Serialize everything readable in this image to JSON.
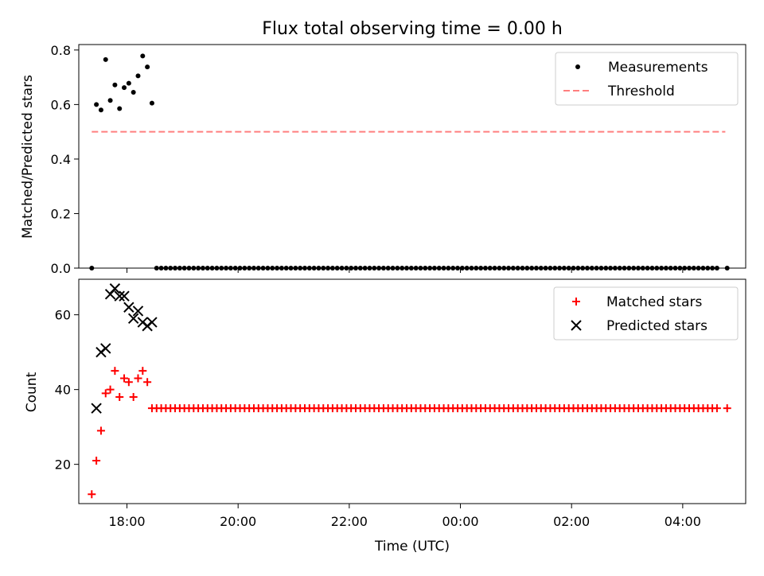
{
  "figure": {
    "title": "Flux total observing time = 0.00 h",
    "xlabel": "Time (UTC)",
    "colors": {
      "measurements": "#000000",
      "threshold": "#ff7f7f",
      "matched": "#ff0000",
      "predicted": "#000000"
    }
  },
  "chart_data": [
    {
      "type": "scatter",
      "panel": "top",
      "ylabel": "Matched/Predicted stars",
      "xlim": [
        "17:08",
        "05:08"
      ],
      "ylim": [
        0,
        0.82
      ],
      "yticks": [
        "0.0",
        "0.2",
        "0.4",
        "0.6",
        "0.8"
      ],
      "legend": {
        "placement": "upper-right",
        "entries": [
          "Measurements",
          "Threshold"
        ]
      },
      "threshold": {
        "name": "Threshold",
        "y": 0.5,
        "x_range": [
          "17:22",
          "04:46"
        ],
        "style": "dashed"
      },
      "series": [
        {
          "name": "Measurements",
          "marker": "dot",
          "points": [
            [
              "17:22",
              0.0
            ],
            [
              "17:27",
              0.6
            ],
            [
              "17:32",
              0.58
            ],
            [
              "17:37",
              0.765
            ],
            [
              "17:42",
              0.615
            ],
            [
              "17:47",
              0.672
            ],
            [
              "17:52",
              0.585
            ],
            [
              "17:57",
              0.662
            ],
            [
              "18:02",
              0.678
            ],
            [
              "18:07",
              0.645
            ],
            [
              "18:12",
              0.705
            ],
            [
              "18:17",
              0.778
            ],
            [
              "18:22",
              0.738
            ],
            [
              "18:27",
              0.605
            ]
          ],
          "zero_run": {
            "from": "18:32",
            "to": "04:37",
            "step_min": 5,
            "y": 0.0
          },
          "extra_points": [
            [
              "04:48",
              0.0
            ]
          ]
        }
      ]
    },
    {
      "type": "scatter",
      "panel": "bottom",
      "ylabel": "Count",
      "xlim": [
        "17:08",
        "05:08"
      ],
      "ylim": [
        9.5,
        69.5
      ],
      "yticks": [
        "20",
        "40",
        "60"
      ],
      "xticks": [
        "18:00",
        "20:00",
        "22:00",
        "00:00",
        "02:00",
        "04:00"
      ],
      "legend": {
        "placement": "upper-right",
        "entries": [
          "Matched stars",
          "Predicted stars"
        ]
      },
      "series": [
        {
          "name": "Matched stars",
          "marker": "plus",
          "points": [
            [
              "17:22",
              12
            ],
            [
              "17:27",
              21
            ],
            [
              "17:32",
              29
            ],
            [
              "17:37",
              39
            ],
            [
              "17:42",
              40
            ],
            [
              "17:47",
              45
            ],
            [
              "17:52",
              38
            ],
            [
              "17:57",
              43
            ],
            [
              "18:02",
              42
            ],
            [
              "18:07",
              38
            ],
            [
              "18:12",
              43
            ],
            [
              "18:17",
              45
            ],
            [
              "18:22",
              42
            ]
          ],
          "flat_run": {
            "from": "18:27",
            "to": "04:37",
            "step_min": 5,
            "y": 35
          },
          "extra_points": [
            [
              "04:48",
              35
            ]
          ]
        },
        {
          "name": "Predicted stars",
          "marker": "x",
          "points": [
            [
              "17:27",
              35
            ],
            [
              "17:32",
              50
            ],
            [
              "17:37",
              51
            ],
            [
              "17:42",
              65.5
            ],
            [
              "17:47",
              67
            ],
            [
              "17:52",
              65
            ],
            [
              "17:57",
              65
            ],
            [
              "18:02",
              62
            ],
            [
              "18:07",
              59
            ],
            [
              "18:12",
              61
            ],
            [
              "18:17",
              58
            ],
            [
              "18:22",
              57
            ],
            [
              "18:27",
              58
            ]
          ]
        }
      ]
    }
  ]
}
